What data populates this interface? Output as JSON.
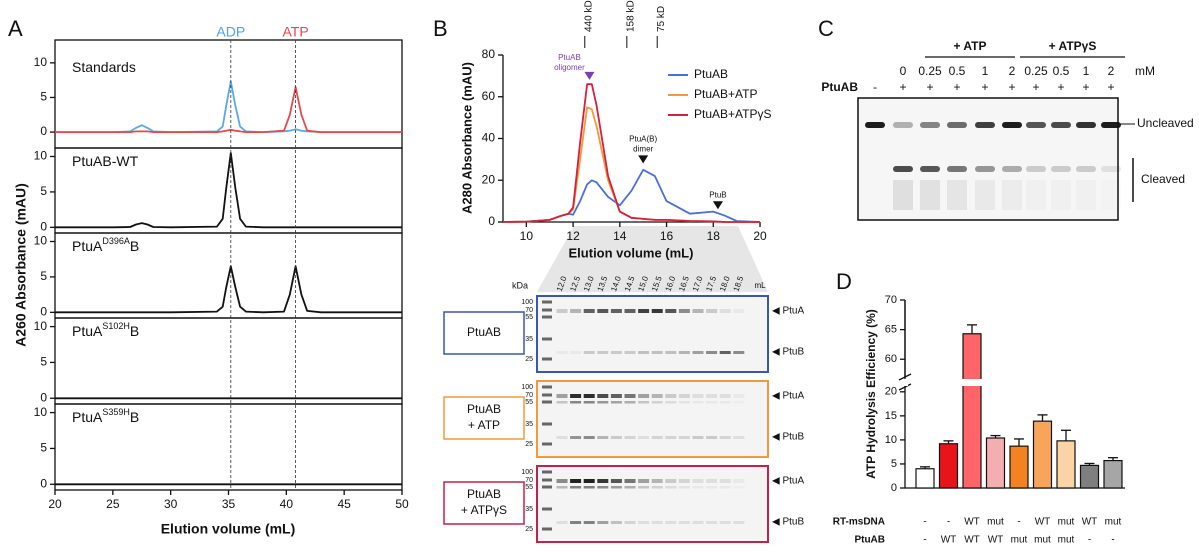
{
  "panel_labels": [
    "A",
    "B",
    "C",
    "D"
  ],
  "panel_a": {
    "ylabel": "A260 Absorbance (mAU)",
    "xlabel": "Elution volume (mL)",
    "markers": [
      {
        "x": 35.2,
        "label": "ADP",
        "color": "#4da3e8"
      },
      {
        "x": 40.8,
        "label": "ATP",
        "color": "#e8474b"
      }
    ]
  },
  "chart_data": [
    {
      "type": "line",
      "title": "Standards",
      "xlim": [
        20,
        50
      ],
      "ylim": [
        -2.3,
        13.3
      ],
      "yticks": [
        0,
        5,
        10
      ],
      "x": [
        20,
        25,
        26.5,
        27,
        27.5,
        28,
        28.5,
        30,
        34,
        34.5,
        34.8,
        35.2,
        35.6,
        36,
        36.5,
        38,
        39.8,
        40.3,
        40.8,
        41.3,
        41.8,
        43,
        50
      ],
      "series": [
        {
          "color": "#5aa9e6",
          "values": [
            0,
            0,
            0.1,
            0.6,
            1.0,
            0.6,
            0.1,
            0,
            0.1,
            0.8,
            3.8,
            7.3,
            3.8,
            0.8,
            0.1,
            0,
            0.1,
            0.2,
            0.4,
            0.2,
            0.1,
            0,
            0
          ]
        },
        {
          "color": "#e8474b",
          "values": [
            0,
            0,
            0,
            0.1,
            0.1,
            0.1,
            0,
            0,
            0,
            0.1,
            0.2,
            0.35,
            0.2,
            0.1,
            0,
            0,
            0.2,
            2.5,
            6.5,
            2.5,
            0.2,
            0,
            0
          ]
        }
      ]
    },
    {
      "type": "line",
      "title": "PtuAB-WT",
      "xlim": [
        20,
        50
      ],
      "ylim": [
        -0.8,
        11.2
      ],
      "yticks": [
        0,
        5,
        10
      ],
      "x": [
        20,
        25,
        26.5,
        27,
        27.5,
        28,
        28.5,
        30,
        34,
        34.5,
        34.8,
        35.2,
        35.6,
        36,
        36.5,
        38,
        39.8,
        40.3,
        40.8,
        41.3,
        41.8,
        43,
        50
      ],
      "series": [
        {
          "color": "#111111",
          "values": [
            0,
            0,
            0.05,
            0.4,
            0.6,
            0.4,
            0.05,
            0,
            0.1,
            1.2,
            5.5,
            10.5,
            5.5,
            1.2,
            0.1,
            0,
            0,
            0,
            0,
            0,
            0,
            0,
            0
          ]
        }
      ]
    },
    {
      "type": "line",
      "title": "PtuA",
      "title_sup": "D396A",
      "title_tail": "B",
      "xlim": [
        20,
        50
      ],
      "ylim": [
        -0.8,
        11.2
      ],
      "yticks": [
        0,
        5,
        10
      ],
      "x": [
        20,
        25,
        26.5,
        27,
        27.5,
        28,
        28.5,
        30,
        34,
        34.5,
        34.8,
        35.2,
        35.6,
        36,
        36.5,
        38,
        39.8,
        40.3,
        40.8,
        41.3,
        41.8,
        43,
        50
      ],
      "series": [
        {
          "color": "#111111",
          "values": [
            0,
            0,
            0,
            0,
            0,
            0,
            0,
            0,
            0.1,
            0.8,
            3.5,
            6.5,
            3.5,
            0.8,
            0.1,
            0,
            0.1,
            2.5,
            6.5,
            2.5,
            0.2,
            0,
            0
          ]
        }
      ]
    },
    {
      "type": "line",
      "title": "PtuA",
      "title_sup": "S102H",
      "title_tail": "B",
      "xlim": [
        20,
        50
      ],
      "ylim": [
        -0.8,
        11.2
      ],
      "yticks": [
        0,
        5,
        10
      ],
      "x": [
        20,
        25,
        26.5,
        27,
        27.5,
        28,
        28.5,
        30,
        34,
        34.5,
        34.8,
        35.2,
        35.6,
        36,
        36.5,
        38,
        39.8,
        40.3,
        40.8,
        41.3,
        41.8,
        43,
        50
      ],
      "series": [
        {
          "color": "#111111",
          "values": [
            0,
            0,
            0,
            0,
            0,
            0,
            0,
            0,
            0,
            0,
            0,
            0,
            0,
            0,
            0,
            0,
            0,
            0,
            0,
            0,
            0,
            0,
            0
          ]
        }
      ]
    },
    {
      "type": "line",
      "title": "PtuA",
      "title_sup": "S359H",
      "title_tail": "B",
      "xlim": [
        20,
        50
      ],
      "ylim": [
        -0.8,
        11.2
      ],
      "yticks": [
        0,
        5,
        10
      ],
      "xticks": [
        20,
        25,
        30,
        35,
        40,
        45,
        50
      ],
      "x": [
        20,
        25,
        26.5,
        27,
        27.5,
        28,
        28.5,
        30,
        34,
        34.5,
        34.8,
        35.2,
        35.6,
        36,
        36.5,
        38,
        39.8,
        40.3,
        40.8,
        41.3,
        41.8,
        43,
        50
      ],
      "series": [
        {
          "color": "#111111",
          "values": [
            0,
            0,
            0,
            0,
            0,
            0,
            0,
            0,
            0,
            0,
            0,
            0,
            0,
            0,
            0,
            0,
            0,
            0,
            0,
            0,
            0,
            0,
            0
          ]
        }
      ]
    },
    {
      "type": "line",
      "xlabel": "Elution volume (mL)",
      "ylabel": "A280 Absorbance (mAU)",
      "xlim": [
        9,
        20
      ],
      "xticks": [
        10,
        12,
        14,
        16,
        18,
        20
      ],
      "ylim": [
        0,
        80
      ],
      "yticks": [
        0,
        20,
        40,
        60,
        80
      ],
      "legend": "top-right",
      "x": [
        9,
        10,
        11,
        11.5,
        11.8,
        12,
        12.3,
        12.6,
        12.8,
        13,
        13.5,
        14,
        14.5,
        15,
        15.5,
        16,
        17,
        18,
        18.5,
        19,
        20
      ],
      "series": [
        {
          "name": "PtuAB",
          "color": "#4a6fd8",
          "values": [
            0,
            0.2,
            1,
            3,
            4,
            3.5,
            10,
            18,
            20,
            19,
            12,
            8,
            15,
            25,
            22,
            10,
            4,
            5,
            3,
            0.5,
            0
          ]
        },
        {
          "name": "PtuAB+ATP",
          "color": "#f29a38",
          "values": [
            0,
            0.2,
            1,
            3,
            4,
            6,
            30,
            55,
            54,
            46,
            20,
            5,
            2,
            1.5,
            1,
            1,
            0.5,
            0.3,
            0,
            0,
            0
          ]
        },
        {
          "name": "PtuAB+ATPγS",
          "color": "#d61f3c",
          "values": [
            0,
            0.2,
            1,
            3,
            4,
            7,
            38,
            66,
            66,
            56,
            22,
            5,
            2,
            1.5,
            1,
            1,
            0.5,
            0.3,
            0,
            0,
            0
          ]
        }
      ],
      "size_markers": [
        {
          "x": 12.5,
          "label": "440 kD"
        },
        {
          "x": 14.3,
          "label": "158 kD"
        },
        {
          "x": 15.6,
          "label": "75 kD"
        }
      ],
      "peak_labels": [
        {
          "x": 12.7,
          "y": 70,
          "lines": [
            "PtuAB",
            "oligomer"
          ],
          "color": "#7a3fb0"
        },
        {
          "x": 15,
          "y": 30,
          "lines": [
            "PtuA(B)",
            "dimer"
          ],
          "color": "#111111"
        },
        {
          "x": 18.2,
          "y": 8,
          "lines": [
            "PtuB"
          ],
          "color": "#111111"
        }
      ]
    },
    {
      "type": "bar",
      "ylabel": "ATP Hydrolysis Efficiency (%)",
      "ylim_segments": [
        [
          0,
          21
        ],
        [
          57,
          70
        ]
      ],
      "yticks": [
        0,
        5,
        10,
        15,
        20,
        60,
        65,
        70
      ],
      "values": [
        4.0,
        9.2,
        64.3,
        10.4,
        8.7,
        13.9,
        9.8,
        4.7,
        5.7
      ],
      "errors": [
        0.4,
        0.6,
        1.5,
        0.5,
        1.5,
        1.3,
        2.2,
        0.4,
        0.6
      ],
      "colors": [
        "#ffffff",
        "#e8141a",
        "#ff6468",
        "#f5aeb0",
        "#f58220",
        "#f8a55c",
        "#fbd3a5",
        "#7f7f7f",
        "#a6a6a6"
      ],
      "category_rows": [
        {
          "label": "RT-msDNA",
          "values": [
            "-",
            "-",
            "WT",
            "mut",
            "-",
            "WT",
            "mut",
            "WT",
            "mut"
          ]
        },
        {
          "label": "PtuAB",
          "values": [
            "-",
            "WT",
            "WT",
            "WT",
            "mut",
            "mut",
            "mut",
            "-",
            "-"
          ]
        }
      ]
    }
  ],
  "gels_b": {
    "kda_label": "kDa",
    "lanes": [
      "12.0",
      "12.5",
      "13.0",
      "13.5",
      "14.0",
      "14.5",
      "15.0",
      "15.5",
      "16.0",
      "16.5",
      "17.0",
      "17.5",
      "18.0",
      "18.5"
    ],
    "unit": "mL",
    "markers": [
      "100",
      "70",
      "55",
      "35",
      "25"
    ],
    "band_labels": [
      "PtuA",
      "PtuB"
    ],
    "samples": [
      {
        "label": [
          "PtuAB"
        ],
        "color": "#3a56b0"
      },
      {
        "label": [
          "PtuAB",
          "+ ATP"
        ],
        "color": "#f29a38"
      },
      {
        "label": [
          "PtuAB",
          "+ ATPγS"
        ],
        "color": "#c0234a"
      }
    ]
  },
  "gel_c": {
    "header_groups": [
      "+ ATP",
      "+ ATPγS"
    ],
    "concentrations": [
      "0",
      "0.25",
      "0.5",
      "1",
      "2",
      "0.25",
      "0.5",
      "1",
      "2"
    ],
    "unit": "mM",
    "row_label": "PtuAB",
    "presence": [
      "-",
      "+",
      "+",
      "+",
      "+",
      "+",
      "+",
      "+",
      "+",
      "+"
    ],
    "bands": [
      "Uncleaved",
      "Cleaved"
    ]
  }
}
